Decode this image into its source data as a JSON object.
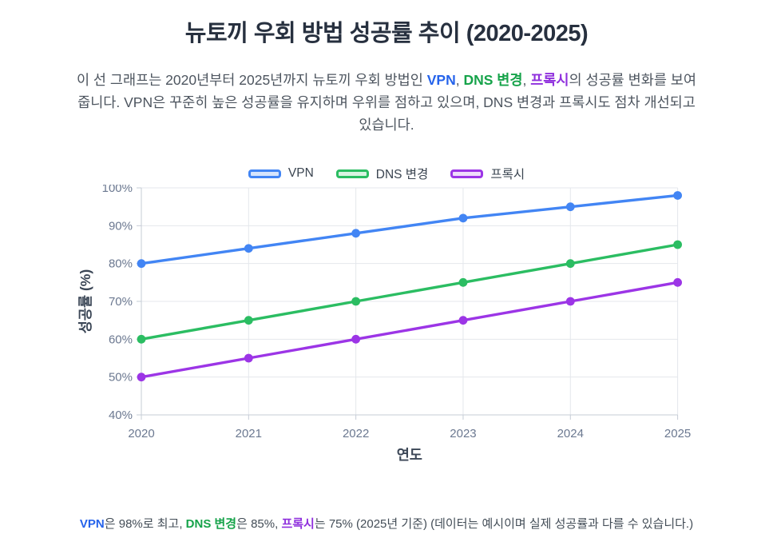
{
  "page": {
    "title": "뉴토끼 우회 방법 성공률 추이 (2020-2025)",
    "description_segments": [
      {
        "text": "이 선 그래프는 2020년부터 2025년까지 뉴토끼 우회 방법인 "
      },
      {
        "text": "VPN",
        "color": "#2563eb",
        "bold": true
      },
      {
        "text": ", "
      },
      {
        "text": "DNS 변경",
        "color": "#16a34a",
        "bold": true
      },
      {
        "text": ", "
      },
      {
        "text": "프록시",
        "color": "#8f30dd",
        "bold": true
      },
      {
        "text": "의 성공률 변화를 보여줍니다. VPN은 꾸준히 높은 성공률을 유지하며 우위를 점하고 있으며, DNS 변경과 프록시도 점차 개선되고 있습니다."
      }
    ],
    "footnote_segments": [
      {
        "text": "VPN",
        "color": "#2563eb",
        "bold": true
      },
      {
        "text": "은 98%로 최고, "
      },
      {
        "text": "DNS 변경",
        "color": "#16a34a",
        "bold": true
      },
      {
        "text": "은 85%, "
      },
      {
        "text": "프록시",
        "color": "#8f30dd",
        "bold": true
      },
      {
        "text": "는 75% (2025년 기준) (데이터는 예시이며 실제 성공률과 다를 수 있습니다.)"
      }
    ]
  },
  "colors": {
    "title": "#27303f",
    "body_text": "#4d555f",
    "tick_label": "#6b7890",
    "axis_title": "#3b4656",
    "gridline": "#e4e7ec",
    "axis_line": "#c6ccd6",
    "vpn_line": "#4285f4",
    "vpn_fill": "#d6e4fc",
    "dns_line": "#2bbd62",
    "dns_fill": "#d9f4e2",
    "proxy_line": "#9c35e6",
    "proxy_fill": "#efdcfb"
  },
  "legend": {
    "items": [
      {
        "id": "vpn",
        "label": "VPN",
        "border": "#4285f4",
        "fill": "#d6e4fc"
      },
      {
        "id": "dns",
        "label": "DNS 변경",
        "border": "#2bbd62",
        "fill": "#d9f4e2"
      },
      {
        "id": "proxy",
        "label": "프록시",
        "border": "#9c35e6",
        "fill": "#efdcfb"
      }
    ]
  },
  "chart_data": {
    "type": "line",
    "title": "뉴토끼 우회 방법 성공률 추이 (2020-2025)",
    "categories": [
      "2020",
      "2021",
      "2022",
      "2023",
      "2024",
      "2025"
    ],
    "series": [
      {
        "name": "VPN",
        "color": "#4285f4",
        "values": [
          80,
          84,
          88,
          92,
          95,
          98
        ]
      },
      {
        "name": "DNS 변경",
        "color": "#2bbd62",
        "values": [
          60,
          65,
          70,
          75,
          80,
          85
        ]
      },
      {
        "name": "프록시",
        "color": "#9c35e6",
        "values": [
          50,
          55,
          60,
          65,
          70,
          75
        ]
      }
    ],
    "xlabel": "연도",
    "ylabel": "성공률 (%)",
    "ylim": [
      40,
      100
    ],
    "ytick_step": 10,
    "ytick_suffix": "%",
    "grid": true,
    "legend_position": "top"
  }
}
